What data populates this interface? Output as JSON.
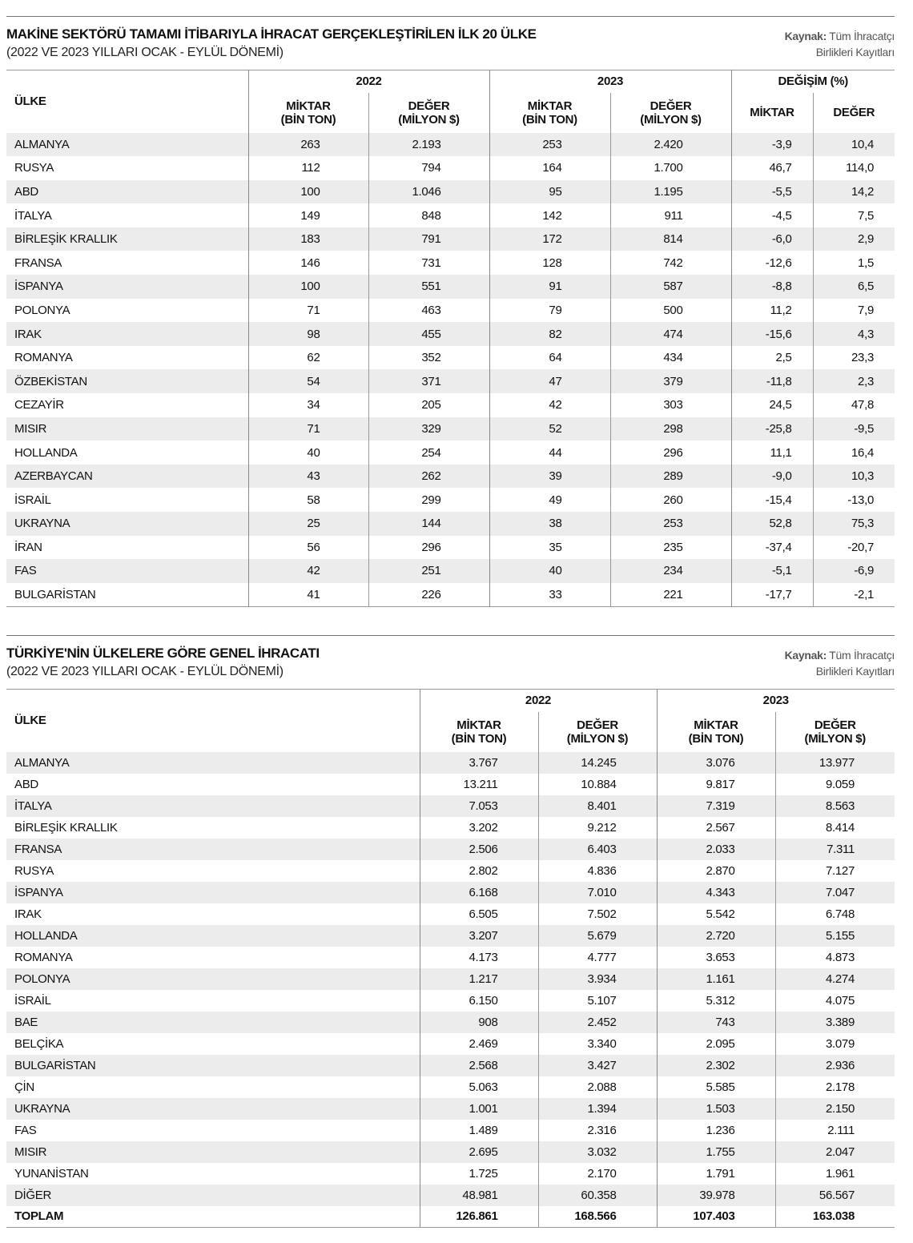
{
  "table1": {
    "title": "MAKİNE SEKTÖRÜ TAMAMI İTİBARIYLA İHRACAT GERÇEKLEŞTİRİLEN İLK 20 ÜLKE",
    "subtitle": "(2022 VE 2023 YILLARI OCAK - EYLÜL DÖNEMİ)",
    "source_label": "Kaynak:",
    "source_line1": " Tüm İhracatçı",
    "source_line2": "Birlikleri Kayıtları",
    "col_country": "ÜLKE",
    "year1": "2022",
    "year2": "2023",
    "change": "DEĞİŞİM (%)",
    "miktar": "MİKTAR",
    "miktar_unit": "(BİN TON)",
    "deger": "DEĞER",
    "deger_unit": "(MİLYON $)",
    "chg_miktar": "MİKTAR",
    "chg_deger": "DEĞER",
    "rows": [
      [
        "ALMANYA",
        "263",
        "2.193",
        "253",
        "2.420",
        "-3,9",
        "10,4"
      ],
      [
        "RUSYA",
        "112",
        "794",
        "164",
        "1.700",
        "46,7",
        "114,0"
      ],
      [
        "ABD",
        "100",
        "1.046",
        "95",
        "1.195",
        "-5,5",
        "14,2"
      ],
      [
        "İTALYA",
        "149",
        "848",
        "142",
        "911",
        "-4,5",
        "7,5"
      ],
      [
        "BİRLEŞİK KRALLIK",
        "183",
        "791",
        "172",
        "814",
        "-6,0",
        "2,9"
      ],
      [
        "FRANSA",
        "146",
        "731",
        "128",
        "742",
        "-12,6",
        "1,5"
      ],
      [
        "İSPANYA",
        "100",
        "551",
        "91",
        "587",
        "-8,8",
        "6,5"
      ],
      [
        "POLONYA",
        "71",
        "463",
        "79",
        "500",
        "11,2",
        "7,9"
      ],
      [
        "IRAK",
        "98",
        "455",
        "82",
        "474",
        "-15,6",
        "4,3"
      ],
      [
        "ROMANYA",
        "62",
        "352",
        "64",
        "434",
        "2,5",
        "23,3"
      ],
      [
        "ÖZBEKİSTAN",
        "54",
        "371",
        "47",
        "379",
        "-11,8",
        "2,3"
      ],
      [
        "CEZAYİR",
        "34",
        "205",
        "42",
        "303",
        "24,5",
        "47,8"
      ],
      [
        "MISIR",
        "71",
        "329",
        "52",
        "298",
        "-25,8",
        "-9,5"
      ],
      [
        "HOLLANDA",
        "40",
        "254",
        "44",
        "296",
        "11,1",
        "16,4"
      ],
      [
        "AZERBAYCAN",
        "43",
        "262",
        "39",
        "289",
        "-9,0",
        "10,3"
      ],
      [
        "İSRAİL",
        "58",
        "299",
        "49",
        "260",
        "-15,4",
        "-13,0"
      ],
      [
        "UKRAYNA",
        "25",
        "144",
        "38",
        "253",
        "52,8",
        "75,3"
      ],
      [
        "İRAN",
        "56",
        "296",
        "35",
        "235",
        "-37,4",
        "-20,7"
      ],
      [
        "FAS",
        "42",
        "251",
        "40",
        "234",
        "-5,1",
        "-6,9"
      ],
      [
        "BULGARİSTAN",
        "41",
        "226",
        "33",
        "221",
        "-17,7",
        "-2,1"
      ]
    ]
  },
  "table2": {
    "title": "TÜRKİYE'NİN ÜLKELERE GÖRE GENEL İHRACATI",
    "subtitle": "(2022 VE 2023 YILLARI OCAK - EYLÜL DÖNEMİ)",
    "source_label": "Kaynak:",
    "source_line1": " Tüm İhracatçı",
    "source_line2": "Birlikleri Kayıtları",
    "col_country": "ÜLKE",
    "year1": "2022",
    "year2": "2023",
    "miktar": "MİKTAR",
    "miktar_unit": "(BİN TON)",
    "deger": "DEĞER",
    "deger_unit": "(MİLYON $)",
    "rows": [
      [
        "ALMANYA",
        "3.767",
        "14.245",
        "3.076",
        "13.977"
      ],
      [
        "ABD",
        "13.211",
        "10.884",
        "9.817",
        "9.059"
      ],
      [
        "İTALYA",
        "7.053",
        "8.401",
        "7.319",
        "8.563"
      ],
      [
        "BİRLEŞİK KRALLIK",
        "3.202",
        "9.212",
        "2.567",
        "8.414"
      ],
      [
        "FRANSA",
        "2.506",
        "6.403",
        "2.033",
        "7.311"
      ],
      [
        "RUSYA",
        "2.802",
        "4.836",
        "2.870",
        "7.127"
      ],
      [
        "İSPANYA",
        "6.168",
        "7.010",
        "4.343",
        "7.047"
      ],
      [
        "IRAK",
        "6.505",
        "7.502",
        "5.542",
        "6.748"
      ],
      [
        "HOLLANDA",
        "3.207",
        "5.679",
        "2.720",
        "5.155"
      ],
      [
        "ROMANYA",
        "4.173",
        "4.777",
        "3.653",
        "4.873"
      ],
      [
        "POLONYA",
        "1.217",
        "3.934",
        "1.161",
        "4.274"
      ],
      [
        "İSRAİL",
        "6.150",
        "5.107",
        "5.312",
        "4.075"
      ],
      [
        "BAE",
        "908",
        "2.452",
        "743",
        "3.389"
      ],
      [
        "BELÇİKA",
        "2.469",
        "3.340",
        "2.095",
        "3.079"
      ],
      [
        "BULGARİSTAN",
        "2.568",
        "3.427",
        "2.302",
        "2.936"
      ],
      [
        "ÇİN",
        "5.063",
        "2.088",
        "5.585",
        "2.178"
      ],
      [
        "UKRAYNA",
        "1.001",
        "1.394",
        "1.503",
        "2.150"
      ],
      [
        "FAS",
        "1.489",
        "2.316",
        "1.236",
        "2.111"
      ],
      [
        "MISIR",
        "2.695",
        "3.032",
        "1.755",
        "2.047"
      ],
      [
        "YUNANİSTAN",
        "1.725",
        "2.170",
        "1.791",
        "1.961"
      ],
      [
        "DİĞER",
        "48.981",
        "60.358",
        "39.978",
        "56.567"
      ]
    ],
    "total": [
      "TOPLAM",
      "126.861",
      "168.566",
      "107.403",
      "163.038"
    ]
  }
}
